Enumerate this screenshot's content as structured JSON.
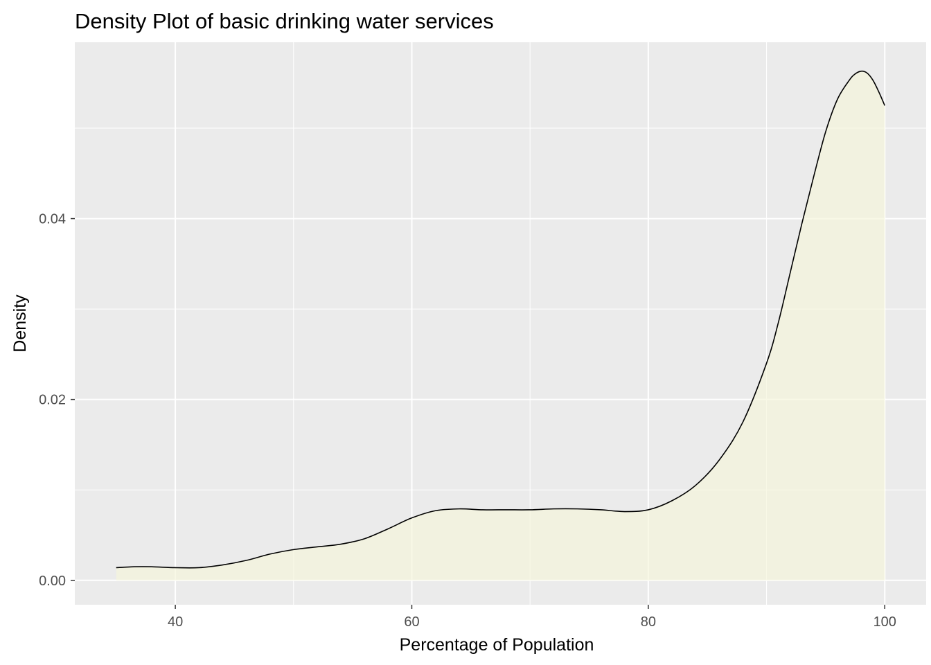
{
  "chart_data": {
    "type": "area",
    "title": "Density Plot of basic drinking water services",
    "xlabel": "Percentage of Population",
    "ylabel": "Density",
    "xlim": [
      31.5,
      103.5
    ],
    "ylim": [
      -0.0027,
      0.0595
    ],
    "x_ticks": [
      40,
      60,
      80,
      100
    ],
    "x_tick_labels": [
      "40",
      "60",
      "80",
      "100"
    ],
    "x_minor_ticks": [
      50,
      70,
      90
    ],
    "y_ticks": [
      0.0,
      0.02,
      0.04
    ],
    "y_tick_labels": [
      "0.00",
      "0.02",
      "0.04"
    ],
    "y_minor_ticks": [
      0.01,
      0.03,
      0.05
    ],
    "grid": true,
    "legend": "none",
    "fill_color": "#F5F5DC",
    "fill_opacity": 0.7,
    "line_color": "#000000",
    "panel_background": "#EBEBEB",
    "series": [
      {
        "x": [
          35.0,
          36.5,
          38.0,
          40.0,
          42.0,
          44.0,
          46.0,
          48.0,
          50.0,
          52.0,
          54.0,
          56.0,
          58.0,
          60.0,
          62.0,
          64.0,
          66.0,
          68.0,
          70.0,
          72.0,
          74.0,
          76.0,
          78.0,
          80.0,
          82.0,
          84.0,
          86.0,
          88.0,
          90.0,
          91.0,
          92.0,
          93.0,
          94.0,
          95.0,
          96.0,
          97.0,
          97.5,
          98.0,
          98.5,
          99.0,
          99.5,
          100.0
        ],
        "y": [
          0.0014,
          0.0015,
          0.0015,
          0.0014,
          0.0014,
          0.0017,
          0.0022,
          0.0029,
          0.0034,
          0.0037,
          0.004,
          0.0046,
          0.0057,
          0.0069,
          0.0077,
          0.0079,
          0.0078,
          0.0078,
          0.0078,
          0.0079,
          0.0079,
          0.0078,
          0.0076,
          0.0078,
          0.0088,
          0.0105,
          0.0133,
          0.0175,
          0.024,
          0.0285,
          0.034,
          0.0395,
          0.0447,
          0.0496,
          0.0532,
          0.0553,
          0.056,
          0.0563,
          0.0561,
          0.0553,
          0.054,
          0.0525
        ]
      }
    ]
  }
}
